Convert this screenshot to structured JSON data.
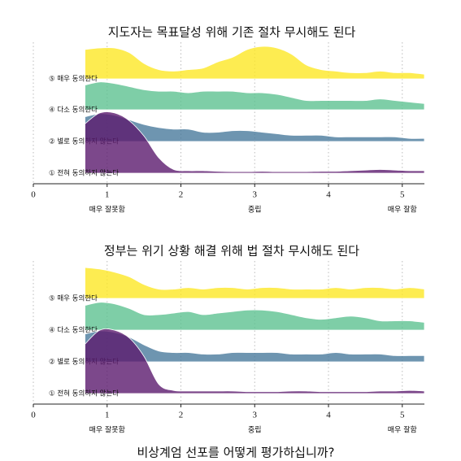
{
  "chart_data": [
    {
      "type": "ridgeline",
      "title": "지도자는 목표달성 위해 기존 절차 무시해도 된다",
      "x": [
        0.7,
        0.9,
        1.1,
        1.3,
        1.5,
        1.7,
        1.9,
        2.1,
        2.3,
        2.5,
        2.7,
        2.9,
        3.1,
        3.3,
        3.5,
        3.7,
        3.9,
        4.1,
        4.3,
        4.5,
        4.7,
        4.9,
        5.1,
        5.3
      ],
      "series": [
        {
          "name": "⑤ 매우 동의한다",
          "color": "#fde725",
          "values": [
            0.95,
            1.0,
            1.0,
            0.85,
            0.5,
            0.3,
            0.25,
            0.3,
            0.35,
            0.55,
            0.7,
            0.95,
            1.05,
            1.0,
            0.8,
            0.45,
            0.3,
            0.25,
            0.2,
            0.2,
            0.25,
            0.2,
            0.2,
            0.15
          ]
        },
        {
          "name": "④ 다소 동의한다",
          "color": "#5ec291",
          "values": [
            0.8,
            0.9,
            0.85,
            0.75,
            0.65,
            0.6,
            0.6,
            0.55,
            0.6,
            0.6,
            0.6,
            0.55,
            0.55,
            0.5,
            0.4,
            0.3,
            0.3,
            0.3,
            0.3,
            0.3,
            0.35,
            0.3,
            0.25,
            0.2
          ]
        },
        {
          "name": "② 별로 동의하지 않는다",
          "color": "#4a7a9c",
          "values": [
            0.8,
            0.9,
            0.85,
            0.7,
            0.55,
            0.45,
            0.4,
            0.4,
            0.3,
            0.3,
            0.35,
            0.35,
            0.3,
            0.25,
            0.2,
            0.2,
            0.2,
            0.15,
            0.15,
            0.15,
            0.15,
            0.15,
            0.1,
            0.1
          ]
        },
        {
          "name": "① 전혀 동의하지 않는다",
          "color": "#5b1a6e",
          "values": [
            1.6,
            1.95,
            1.95,
            1.7,
            1.2,
            0.5,
            0.12,
            0.08,
            0.08,
            0.06,
            0.05,
            0.05,
            0.06,
            0.05,
            0.05,
            0.05,
            0.06,
            0.06,
            0.08,
            0.1,
            0.12,
            0.1,
            0.08,
            0.08
          ]
        }
      ],
      "xlim": [
        0,
        5.3
      ],
      "xticks": [
        0,
        1,
        2,
        3,
        4,
        5
      ],
      "grid": true,
      "x_anchor_labels": [
        {
          "value": 1,
          "label": "매우 잘못함"
        },
        {
          "value": 3,
          "label": "중립"
        },
        {
          "value": 5,
          "label": "매우 잘함"
        }
      ]
    },
    {
      "type": "ridgeline",
      "title": "정부는 위기 상황 해결 위해 법 절차 무시해도 된다",
      "x": [
        0.7,
        0.9,
        1.1,
        1.3,
        1.5,
        1.7,
        1.9,
        2.1,
        2.3,
        2.5,
        2.7,
        2.9,
        3.1,
        3.3,
        3.5,
        3.7,
        3.9,
        4.1,
        4.3,
        4.5,
        4.7,
        4.9,
        5.1,
        5.3
      ],
      "series": [
        {
          "name": "⑤ 매우 동의한다",
          "color": "#fde725",
          "values": [
            1.0,
            0.95,
            0.85,
            0.7,
            0.45,
            0.3,
            0.3,
            0.35,
            0.3,
            0.35,
            0.35,
            0.3,
            0.35,
            0.35,
            0.3,
            0.3,
            0.3,
            0.35,
            0.3,
            0.35,
            0.35,
            0.3,
            0.35,
            0.3
          ]
        },
        {
          "name": "④ 다소 동의한다",
          "color": "#5ec291",
          "values": [
            0.8,
            0.9,
            0.85,
            0.7,
            0.5,
            0.5,
            0.55,
            0.6,
            0.5,
            0.55,
            0.6,
            0.65,
            0.65,
            0.6,
            0.5,
            0.4,
            0.35,
            0.4,
            0.45,
            0.4,
            0.3,
            0.3,
            0.3,
            0.25
          ]
        },
        {
          "name": "② 별로 동의하지 않는다",
          "color": "#4a7a9c",
          "values": [
            0.9,
            1.0,
            0.95,
            0.8,
            0.55,
            0.35,
            0.3,
            0.3,
            0.25,
            0.25,
            0.3,
            0.3,
            0.3,
            0.3,
            0.25,
            0.25,
            0.25,
            0.3,
            0.25,
            0.25,
            0.25,
            0.2,
            0.2,
            0.2
          ]
        },
        {
          "name": "① 전혀 동의하지 않는다",
          "color": "#5b1a6e",
          "values": [
            1.6,
            2.05,
            2.05,
            1.8,
            1.2,
            0.3,
            0.1,
            0.08,
            0.08,
            0.08,
            0.08,
            0.06,
            0.06,
            0.06,
            0.08,
            0.08,
            0.06,
            0.06,
            0.06,
            0.06,
            0.08,
            0.08,
            0.1,
            0.08
          ]
        }
      ],
      "xlim": [
        0,
        5.3
      ],
      "xticks": [
        0,
        1,
        2,
        3,
        4,
        5
      ],
      "grid": true,
      "x_anchor_labels": [
        {
          "value": 1,
          "label": "매우 잘못함"
        },
        {
          "value": 3,
          "label": "중립"
        },
        {
          "value": 5,
          "label": "매우 잘함"
        }
      ]
    }
  ],
  "x_title": "비상계엄 선포를 어떻게 평가하십니까?"
}
